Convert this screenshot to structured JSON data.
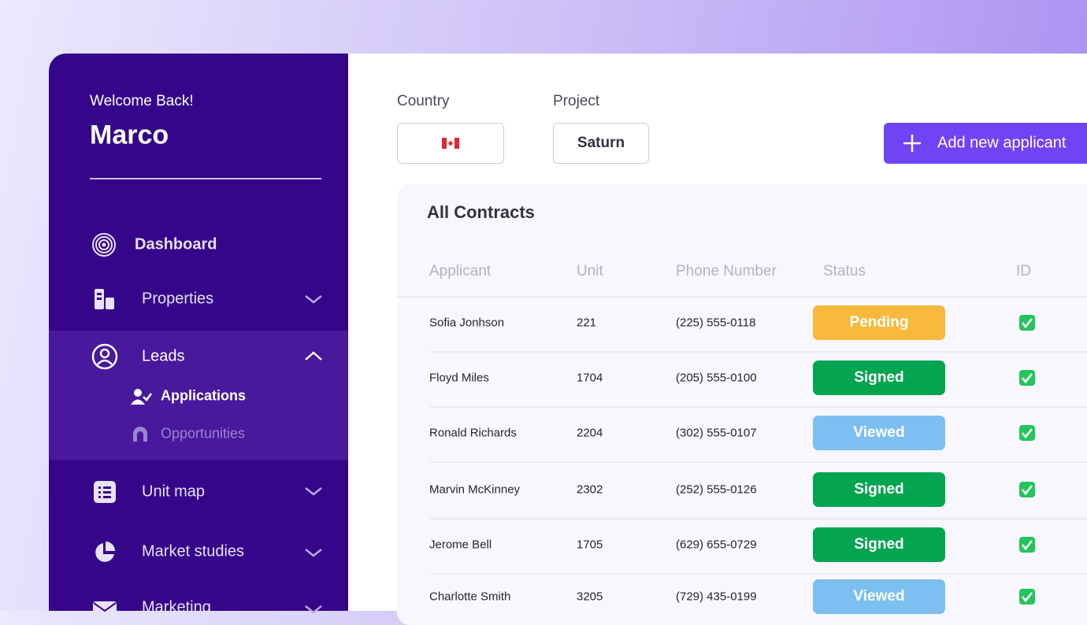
{
  "sidebar": {
    "greeting": "Welcome Back!",
    "user_name": "Marco",
    "menu": [
      {
        "label": "Dashboard"
      },
      {
        "label": "Properties"
      },
      {
        "label": "Leads",
        "submenu": [
          {
            "label": "Applications"
          },
          {
            "label": "Opportunities"
          }
        ]
      },
      {
        "label": "Unit map"
      },
      {
        "label": "Market studies"
      },
      {
        "label": "Marketing"
      }
    ]
  },
  "filters": [
    {
      "label": "Country"
    },
    {
      "label": "Project",
      "value": "Saturn"
    }
  ],
  "add_button": "Add new applicant",
  "table": {
    "title": "All Contracts",
    "columns": [
      "Applicant",
      "Unit",
      "Phone Number",
      "Status",
      "ID"
    ],
    "rows": [
      {
        "applicant": "Sofia Jonhson",
        "unit": "221",
        "phone": "(225) 555-0118",
        "status": "Pending",
        "status_color": "#f6b93b"
      },
      {
        "applicant": "Floyd Miles",
        "unit": "1704",
        "phone": "(205) 555-0100",
        "status": "Signed",
        "status_color": "#04a550"
      },
      {
        "applicant": "Ronald Richards",
        "unit": "2204",
        "phone": "(302) 555-0107",
        "status": "Viewed",
        "status_color": "#7cbff0"
      },
      {
        "applicant": "Marvin McKinney",
        "unit": "2302",
        "phone": "(252) 555-0126",
        "status": "Signed",
        "status_color": "#04a550"
      },
      {
        "applicant": "Jerome Bell",
        "unit": "1705",
        "phone": "(629) 655-0729",
        "status": "Signed",
        "status_color": "#04a550"
      },
      {
        "applicant": "Charlotte Smith",
        "unit": "3205",
        "phone": "(729) 435-0199",
        "status": "Viewed",
        "status_color": "#7cbff0"
      }
    ]
  }
}
